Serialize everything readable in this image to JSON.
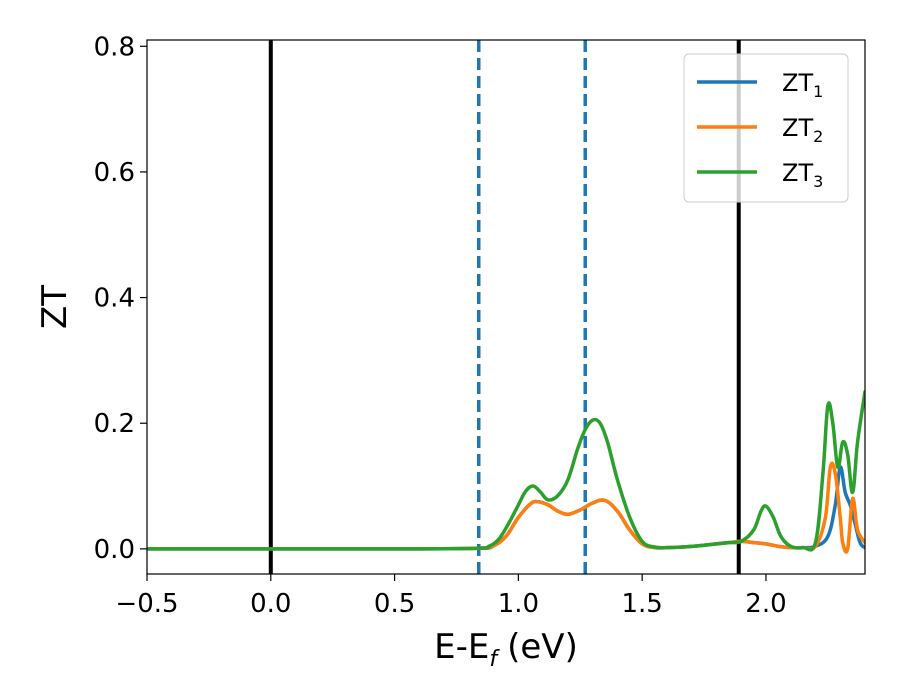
{
  "chart_data": {
    "type": "line",
    "xlabel": "E-E",
    "xlabel_sub": "f",
    "xlabel_unit": "(eV)",
    "ylabel": "ZT",
    "xlim": [
      -0.5,
      2.4
    ],
    "ylim": [
      -0.04,
      0.81
    ],
    "xticks": [
      -0.5,
      0.0,
      0.5,
      1.0,
      1.5,
      2.0
    ],
    "xtick_labels": [
      "−0.5",
      "0.0",
      "0.5",
      "1.0",
      "1.5",
      "2.0"
    ],
    "yticks": [
      0.0,
      0.2,
      0.4,
      0.6,
      0.8
    ],
    "ytick_labels": [
      "0.0",
      "0.2",
      "0.4",
      "0.6",
      "0.8"
    ],
    "grid": false,
    "legend_position": "top-right",
    "vlines": [
      {
        "x": 0.0,
        "style": "solid",
        "color": "#000000"
      },
      {
        "x": 1.89,
        "style": "solid",
        "color": "#000000"
      },
      {
        "x": 0.84,
        "style": "dashed",
        "color": "#1f77b4"
      },
      {
        "x": 1.27,
        "style": "dashed",
        "color": "#1f77b4"
      }
    ],
    "series": [
      {
        "name": "ZT",
        "sub": "1",
        "color": "#1f77b4",
        "x": [
          -0.5,
          0.0,
          0.5,
          0.84,
          0.9,
          0.95,
          1.0,
          1.05,
          1.08,
          1.12,
          1.16,
          1.2,
          1.25,
          1.3,
          1.35,
          1.4,
          1.45,
          1.5,
          1.55,
          1.6,
          1.7,
          1.8,
          1.85,
          1.9,
          1.95,
          2.0,
          2.05,
          2.1,
          2.15,
          2.2,
          2.25,
          2.28,
          2.3,
          2.32,
          2.34,
          2.36,
          2.38,
          2.4
        ],
        "y": [
          0.0,
          0.0,
          0.0,
          0.001,
          0.005,
          0.02,
          0.05,
          0.072,
          0.075,
          0.07,
          0.06,
          0.055,
          0.062,
          0.073,
          0.077,
          0.06,
          0.03,
          0.008,
          0.002,
          0.002,
          0.004,
          0.008,
          0.01,
          0.012,
          0.01,
          0.008,
          0.004,
          0.002,
          0.002,
          0.004,
          0.02,
          0.07,
          0.13,
          0.09,
          0.07,
          0.04,
          0.01,
          0.002
        ]
      },
      {
        "name": "ZT",
        "sub": "2",
        "color": "#ff7f0e",
        "x": [
          -0.5,
          0.0,
          0.5,
          0.84,
          0.9,
          0.95,
          1.0,
          1.05,
          1.08,
          1.12,
          1.16,
          1.2,
          1.25,
          1.3,
          1.35,
          1.4,
          1.45,
          1.5,
          1.55,
          1.6,
          1.7,
          1.8,
          1.85,
          1.9,
          1.95,
          2.0,
          2.05,
          2.1,
          2.15,
          2.2,
          2.24,
          2.26,
          2.28,
          2.3,
          2.31,
          2.33,
          2.35,
          2.37,
          2.4
        ],
        "y": [
          0.0,
          0.0,
          0.0,
          0.001,
          0.005,
          0.02,
          0.05,
          0.072,
          0.075,
          0.07,
          0.06,
          0.055,
          0.062,
          0.073,
          0.077,
          0.06,
          0.03,
          0.008,
          0.002,
          0.002,
          0.004,
          0.008,
          0.01,
          0.012,
          0.01,
          0.008,
          0.004,
          0.002,
          0.002,
          0.004,
          0.05,
          0.13,
          0.12,
          0.05,
          0.01,
          0.0,
          0.08,
          0.03,
          0.01
        ]
      },
      {
        "name": "ZT",
        "sub": "3",
        "color": "#2ca02c",
        "x": [
          -0.5,
          0.0,
          0.5,
          0.84,
          0.88,
          0.92,
          0.96,
          1.0,
          1.03,
          1.06,
          1.09,
          1.12,
          1.16,
          1.2,
          1.24,
          1.27,
          1.3,
          1.33,
          1.36,
          1.4,
          1.45,
          1.5,
          1.55,
          1.6,
          1.7,
          1.8,
          1.85,
          1.9,
          1.95,
          1.98,
          2.0,
          2.03,
          2.06,
          2.1,
          2.15,
          2.2,
          2.23,
          2.25,
          2.27,
          2.29,
          2.31,
          2.33,
          2.35,
          2.37,
          2.4
        ],
        "y": [
          0.0,
          0.0,
          0.0,
          0.001,
          0.004,
          0.015,
          0.04,
          0.07,
          0.092,
          0.1,
          0.09,
          0.078,
          0.085,
          0.11,
          0.16,
          0.19,
          0.205,
          0.2,
          0.17,
          0.11,
          0.05,
          0.012,
          0.003,
          0.002,
          0.004,
          0.008,
          0.01,
          0.012,
          0.03,
          0.06,
          0.068,
          0.05,
          0.02,
          0.004,
          0.002,
          0.01,
          0.12,
          0.228,
          0.2,
          0.13,
          0.17,
          0.15,
          0.09,
          0.17,
          0.25
        ]
      }
    ]
  }
}
